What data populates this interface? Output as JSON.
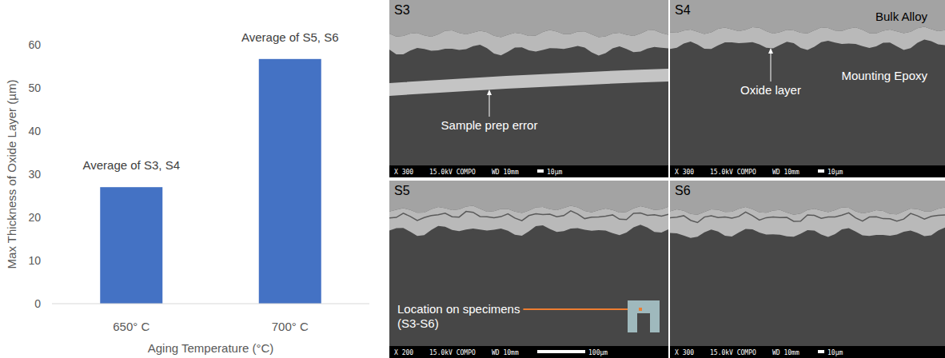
{
  "chart_data": {
    "type": "bar",
    "categories": [
      "650° C",
      "700° C"
    ],
    "values": [
      27,
      56.7
    ],
    "color": "#4472c4",
    "ylim": [
      0,
      60
    ],
    "yticks": [
      0,
      10,
      20,
      30,
      40,
      50,
      60
    ],
    "grid": false,
    "x_label": "Aging Temperature (°C)",
    "y_label": "Max Thickness of Oxide Layer (µm)",
    "annotations": [
      "Average of S3, S4",
      "Average of S5, S6"
    ]
  },
  "panels": [
    {
      "label": "S3",
      "info": [
        "X 300",
        "15.0kV COMPO",
        "10µm",
        "WD 10mm"
      ],
      "annotations": [
        "Sample prep error"
      ]
    },
    {
      "label": "S4",
      "info": [
        "X 300",
        "15.0kV COMPO",
        "10µm",
        "WD 10mm"
      ],
      "annotations": [
        "Bulk Alloy",
        "Oxide layer",
        "Mounting Epoxy"
      ]
    },
    {
      "label": "S5",
      "info": [
        "X 200",
        "15.0kV COMPO",
        "100µm",
        "WD 10mm"
      ],
      "annotations": [
        "Location on specimens",
        "(S3-S6)"
      ]
    },
    {
      "label": "S6",
      "info": [
        "X 300",
        "15.0kV COMPO",
        "10µm",
        "WD 10mm"
      ],
      "annotations": []
    }
  ]
}
